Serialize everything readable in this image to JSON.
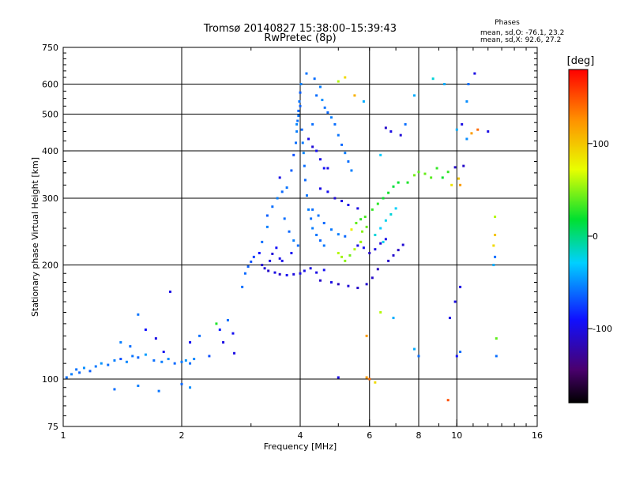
{
  "title_line1": "Tromsø 20140827 15:38:00–15:39:43",
  "title_line2": "RwPretec (8p)",
  "stats": {
    "heading": "Phases",
    "line_o": "mean, sd,O: -76.1, 23.2",
    "line_x": "mean, sd,X:  92.6, 27.2"
  },
  "colorbar": {
    "unit_label": "[deg]",
    "range": [
      -180,
      180
    ],
    "ticks": [
      {
        "value": 100,
        "label": "100"
      },
      {
        "value": 0,
        "label": "0"
      },
      {
        "value": -100,
        "label": "-100"
      }
    ]
  },
  "chart_data": {
    "type": "scatter",
    "xlabel": "Frequency [MHz]",
    "ylabel": "Stationary phase Virtual Height [km]",
    "xscale": "log",
    "yscale": "log",
    "xlim": [
      1,
      16
    ],
    "ylim": [
      75,
      750
    ],
    "x_ticks": [
      {
        "value": 1,
        "label": "1"
      },
      {
        "value": 2,
        "label": "2"
      },
      {
        "value": 4,
        "label": "4"
      },
      {
        "value": 6,
        "label": "6"
      },
      {
        "value": 8,
        "label": "8"
      },
      {
        "value": 10,
        "label": "10"
      },
      {
        "value": 16,
        "label": "16"
      }
    ],
    "y_ticks": [
      {
        "value": 75,
        "label": "75"
      },
      {
        "value": 100,
        "label": "100"
      },
      {
        "value": 200,
        "label": "200"
      },
      {
        "value": 300,
        "label": "300"
      },
      {
        "value": 400,
        "label": "400"
      },
      {
        "value": 500,
        "label": "500"
      },
      {
        "value": 600,
        "label": "600"
      },
      {
        "value": 750,
        "label": "750"
      }
    ],
    "x_gridlines": [
      2,
      4,
      6,
      8,
      10
    ],
    "y_gridlines": [
      100,
      200,
      300,
      400,
      500,
      600
    ],
    "points": [
      [
        1.02,
        101,
        -60
      ],
      [
        1.05,
        103,
        -55
      ],
      [
        1.08,
        106,
        -58
      ],
      [
        1.1,
        104,
        -62
      ],
      [
        1.13,
        107,
        -50
      ],
      [
        1.17,
        105,
        -65
      ],
      [
        1.21,
        108,
        -57
      ],
      [
        1.25,
        110,
        -48
      ],
      [
        1.3,
        109,
        -60
      ],
      [
        1.35,
        112,
        -55
      ],
      [
        1.4,
        113,
        -70
      ],
      [
        1.45,
        111,
        -52
      ],
      [
        1.5,
        115,
        -58
      ],
      [
        1.55,
        114,
        -63
      ],
      [
        1.62,
        116,
        -45
      ],
      [
        1.7,
        112,
        -60
      ],
      [
        1.78,
        111,
        -55
      ],
      [
        1.85,
        113,
        -50
      ],
      [
        1.92,
        110,
        -62
      ],
      [
        2.0,
        111,
        -57
      ],
      [
        2.05,
        112,
        -48
      ],
      [
        2.1,
        110,
        -60
      ],
      [
        2.15,
        113,
        -52
      ],
      [
        1.4,
        125,
        -55
      ],
      [
        1.48,
        122,
        -60
      ],
      [
        1.55,
        148,
        -58
      ],
      [
        1.62,
        135,
        -90
      ],
      [
        1.72,
        128,
        -100
      ],
      [
        1.8,
        118,
        -95
      ],
      [
        1.87,
        170,
        -100
      ],
      [
        2.1,
        125,
        -95
      ],
      [
        2.22,
        130,
        -60
      ],
      [
        2.35,
        115,
        -70
      ],
      [
        1.35,
        94,
        -60
      ],
      [
        1.55,
        96,
        -55
      ],
      [
        1.75,
        93,
        -58
      ],
      [
        2.0,
        97,
        -62
      ],
      [
        2.1,
        95,
        -50
      ],
      [
        2.45,
        140,
        25
      ],
      [
        2.5,
        135,
        -85
      ],
      [
        2.55,
        125,
        -100
      ],
      [
        2.62,
        143,
        -60
      ],
      [
        2.7,
        132,
        -95
      ],
      [
        2.72,
        117,
        -100
      ],
      [
        2.85,
        175,
        -60
      ],
      [
        2.9,
        190,
        -62
      ],
      [
        2.95,
        198,
        -65
      ],
      [
        3.0,
        204,
        -70
      ],
      [
        3.05,
        210,
        -75
      ],
      [
        3.15,
        215,
        -90
      ],
      [
        3.2,
        230,
        -60
      ],
      [
        3.3,
        252,
        -55
      ],
      [
        3.35,
        205,
        -100
      ],
      [
        3.4,
        214,
        -105
      ],
      [
        3.48,
        222,
        -92
      ],
      [
        3.55,
        208,
        -98
      ],
      [
        3.2,
        200,
        -110
      ],
      [
        3.25,
        196,
        -105
      ],
      [
        3.32,
        193,
        -110
      ],
      [
        3.45,
        191,
        -100
      ],
      [
        3.55,
        189,
        -110
      ],
      [
        3.7,
        188,
        -95
      ],
      [
        3.85,
        189,
        -102
      ],
      [
        4.0,
        190,
        -100
      ],
      [
        4.1,
        193,
        -98
      ],
      [
        4.25,
        196,
        -102
      ],
      [
        4.4,
        191,
        -100
      ],
      [
        4.6,
        194,
        -95
      ],
      [
        3.3,
        270,
        -65
      ],
      [
        3.4,
        285,
        -60
      ],
      [
        3.5,
        300,
        -55
      ],
      [
        3.6,
        312,
        -62
      ],
      [
        3.7,
        320,
        -58
      ],
      [
        3.55,
        340,
        -100
      ],
      [
        3.65,
        265,
        -60
      ],
      [
        3.75,
        245,
        -62
      ],
      [
        3.85,
        232,
        -55
      ],
      [
        3.95,
        225,
        -60
      ],
      [
        3.6,
        205,
        -98
      ],
      [
        3.8,
        215,
        -95
      ],
      [
        3.8,
        355,
        -65
      ],
      [
        3.85,
        390,
        -70
      ],
      [
        3.9,
        420,
        -60
      ],
      [
        3.92,
        450,
        -55
      ],
      [
        3.94,
        480,
        -60
      ],
      [
        3.96,
        510,
        -62
      ],
      [
        3.98,
        540,
        -58
      ],
      [
        4.0,
        570,
        -65
      ],
      [
        4.02,
        600,
        -55
      ],
      [
        3.92,
        470,
        -52
      ],
      [
        3.96,
        495,
        -58
      ],
      [
        4.0,
        525,
        -64
      ],
      [
        4.04,
        455,
        -62
      ],
      [
        4.06,
        420,
        -57
      ],
      [
        4.08,
        395,
        -53
      ],
      [
        4.1,
        365,
        -60
      ],
      [
        4.12,
        335,
        -62
      ],
      [
        4.16,
        305,
        -58
      ],
      [
        4.2,
        280,
        -55
      ],
      [
        4.26,
        265,
        -60
      ],
      [
        4.3,
        250,
        -55
      ],
      [
        4.4,
        240,
        -58
      ],
      [
        4.5,
        232,
        -62
      ],
      [
        4.6,
        225,
        -57
      ],
      [
        4.2,
        430,
        -100
      ],
      [
        4.3,
        410,
        -105
      ],
      [
        4.4,
        400,
        -95
      ],
      [
        4.5,
        380,
        -100
      ],
      [
        4.6,
        360,
        -92
      ],
      [
        4.3,
        470,
        -60
      ],
      [
        4.4,
        560,
        -60
      ],
      [
        4.5,
        590,
        -55
      ],
      [
        4.55,
        545,
        -50
      ],
      [
        4.62,
        520,
        -58
      ],
      [
        4.7,
        505,
        -62
      ],
      [
        4.8,
        490,
        -55
      ],
      [
        4.9,
        470,
        -60
      ],
      [
        5.0,
        440,
        -58
      ],
      [
        5.1,
        415,
        -62
      ],
      [
        5.2,
        395,
        -56
      ],
      [
        5.3,
        375,
        -60
      ],
      [
        5.4,
        355,
        -55
      ],
      [
        4.15,
        640,
        -58
      ],
      [
        4.35,
        620,
        -60
      ],
      [
        5.0,
        610,
        60
      ],
      [
        5.2,
        625,
        90
      ],
      [
        5.5,
        560,
        110
      ],
      [
        5.8,
        540,
        -40
      ],
      [
        4.5,
        318,
        -100
      ],
      [
        4.7,
        312,
        -95
      ],
      [
        4.9,
        300,
        -105
      ],
      [
        5.1,
        295,
        -100
      ],
      [
        5.3,
        288,
        -98
      ],
      [
        5.6,
        282,
        -100
      ],
      [
        4.3,
        280,
        -60
      ],
      [
        4.45,
        270,
        -58
      ],
      [
        4.6,
        258,
        -62
      ],
      [
        4.8,
        248,
        -57
      ],
      [
        5.0,
        241,
        -55
      ],
      [
        5.2,
        238,
        -62
      ],
      [
        5.0,
        215,
        60
      ],
      [
        5.1,
        210,
        55
      ],
      [
        5.2,
        205,
        50
      ],
      [
        5.35,
        212,
        45
      ],
      [
        5.5,
        220,
        60
      ],
      [
        5.7,
        230,
        55
      ],
      [
        5.4,
        248,
        80
      ],
      [
        5.55,
        258,
        40
      ],
      [
        5.7,
        264,
        30
      ],
      [
        5.85,
        268,
        35
      ],
      [
        5.75,
        245,
        50
      ],
      [
        5.9,
        252,
        42
      ],
      [
        6.1,
        280,
        30
      ],
      [
        6.3,
        290,
        28
      ],
      [
        6.5,
        300,
        20
      ],
      [
        6.7,
        310,
        22
      ],
      [
        6.9,
        322,
        15
      ],
      [
        7.1,
        330,
        18
      ],
      [
        6.4,
        250,
        -30
      ],
      [
        6.6,
        262,
        -25
      ],
      [
        6.8,
        272,
        -20
      ],
      [
        7.0,
        282,
        -28
      ],
      [
        6.2,
        240,
        -20
      ],
      [
        6.5,
        230,
        -25
      ],
      [
        5.6,
        225,
        -100
      ],
      [
        5.8,
        222,
        -95
      ],
      [
        6.0,
        215,
        -110
      ],
      [
        6.2,
        220,
        -100
      ],
      [
        6.4,
        228,
        -105
      ],
      [
        6.6,
        234,
        -98
      ],
      [
        6.7,
        205,
        -110
      ],
      [
        6.9,
        212,
        -108
      ],
      [
        7.1,
        219,
        -112
      ],
      [
        7.3,
        226,
        -106
      ],
      [
        6.1,
        185,
        -110
      ],
      [
        6.3,
        195,
        -115
      ],
      [
        4.5,
        182,
        -110
      ],
      [
        4.8,
        180,
        -100
      ],
      [
        5.0,
        178,
        -115
      ],
      [
        5.3,
        176,
        -105
      ],
      [
        5.6,
        174,
        -110
      ],
      [
        5.9,
        178,
        -108
      ],
      [
        6.4,
        390,
        -30
      ],
      [
        6.6,
        460,
        -110
      ],
      [
        6.8,
        450,
        -100
      ],
      [
        7.2,
        440,
        -105
      ],
      [
        7.4,
        470,
        -60
      ],
      [
        7.5,
        330,
        25
      ],
      [
        7.8,
        345,
        45
      ],
      [
        8.0,
        352,
        40
      ],
      [
        8.3,
        348,
        42
      ],
      [
        8.6,
        340,
        38
      ],
      [
        8.9,
        360,
        30
      ],
      [
        9.2,
        340,
        20
      ],
      [
        9.5,
        352,
        30
      ],
      [
        9.9,
        362,
        -110
      ],
      [
        10.1,
        338,
        100
      ],
      [
        10.4,
        365,
        -110
      ],
      [
        9.7,
        325,
        85
      ],
      [
        10.2,
        325,
        120
      ],
      [
        10.0,
        455,
        -40
      ],
      [
        10.3,
        470,
        -100
      ],
      [
        10.6,
        430,
        -50
      ],
      [
        10.9,
        445,
        120
      ],
      [
        11.3,
        455,
        140
      ],
      [
        12.0,
        450,
        -100
      ],
      [
        10.7,
        600,
        -60
      ],
      [
        11.1,
        640,
        -100
      ],
      [
        10.6,
        540,
        -50
      ],
      [
        9.3,
        600,
        -40
      ],
      [
        8.7,
        620,
        -20
      ],
      [
        7.8,
        560,
        -40
      ],
      [
        5.9,
        130,
        120
      ],
      [
        6.4,
        150,
        60
      ],
      [
        6.9,
        145,
        -40
      ],
      [
        7.8,
        120,
        -40
      ],
      [
        8.0,
        115,
        -60
      ],
      [
        10.0,
        115,
        -90
      ],
      [
        10.2,
        118,
        -60
      ],
      [
        12.6,
        128,
        40
      ],
      [
        12.6,
        115,
        -60
      ],
      [
        9.9,
        160,
        -100
      ],
      [
        9.6,
        145,
        -100
      ],
      [
        10.2,
        175,
        -100
      ],
      [
        5.9,
        101,
        120
      ],
      [
        6.0,
        100,
        140
      ],
      [
        6.2,
        98,
        90
      ],
      [
        5.0,
        101,
        -100
      ],
      [
        9.5,
        88,
        150
      ],
      [
        12.4,
        200,
        -40
      ],
      [
        12.5,
        210,
        -60
      ],
      [
        12.4,
        225,
        90
      ],
      [
        12.5,
        240,
        100
      ],
      [
        12.5,
        268,
        60
      ],
      [
        5.7,
        230,
        55
      ],
      [
        4.7,
        360,
        -100
      ]
    ]
  }
}
